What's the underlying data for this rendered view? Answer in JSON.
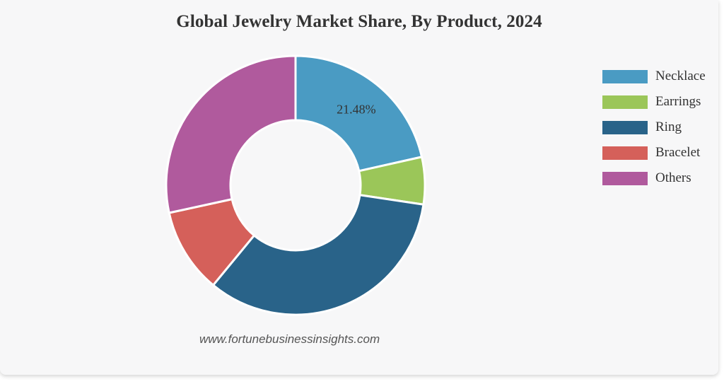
{
  "chart_data": {
    "type": "pie",
    "donut": true,
    "title": "Global Jewelry Market Share, By Product, 2024",
    "categories": [
      "Necklace",
      "Earrings",
      "Ring",
      "Bracelet",
      "Others"
    ],
    "values": [
      21.48,
      5.9,
      33.6,
      10.6,
      28.42
    ],
    "value_unit": "%",
    "data_labels": [
      "21.48%",
      "",
      "",
      "",
      ""
    ],
    "colors": [
      "#4a9bc3",
      "#9bc659",
      "#296389",
      "#d5605a",
      "#b05a9d"
    ],
    "legend_position": "right",
    "start_angle": "top",
    "direction": "clockwise"
  },
  "source_text": "www.fortunebusinessinsights.com"
}
